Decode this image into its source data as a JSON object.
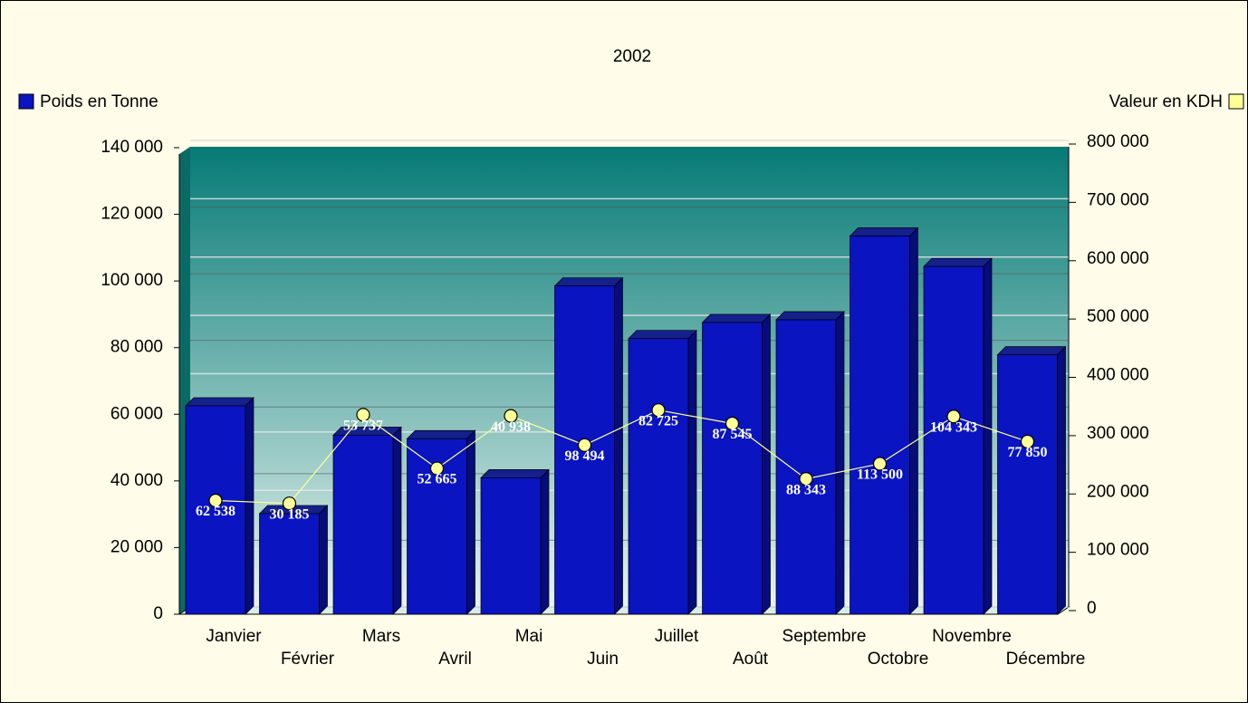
{
  "chart_data": {
    "type": "bar",
    "title": "2002",
    "categories": [
      "Janvier",
      "Février",
      "Mars",
      "Avril",
      "Mai",
      "Juin",
      "Juillet",
      "Août",
      "Septembre",
      "Octobre",
      "Novembre",
      "Décembre"
    ],
    "series": [
      {
        "name": "Poids en Tonne",
        "type": "bar",
        "color": "#0a14c0",
        "values": [
          62538,
          30185,
          53737,
          52665,
          40938,
          98494,
          82725,
          87545,
          88343,
          113500,
          104343,
          77850
        ],
        "value_labels": [
          "62 538",
          "30 185",
          "53 737",
          "52 665",
          "40 938",
          "98 494",
          "82 725",
          "87 545",
          "88 343",
          "113 500",
          "104 343",
          "77 850"
        ]
      },
      {
        "name": "Valeur en KDH",
        "type": "line",
        "axis": "y2",
        "color": "#ffff99",
        "values": [
          195000,
          190000,
          342000,
          250000,
          340000,
          290000,
          350000,
          327000,
          232000,
          258000,
          339000,
          296000
        ]
      }
    ],
    "ylim": [
      0,
      140000
    ],
    "yticks": [
      0,
      {
        "value": 20000,
        "label": "20 000"
      },
      {
        "value": 40000,
        "label": "40 000"
      },
      {
        "value": 60000,
        "label": "60 000"
      },
      {
        "value": 80000,
        "label": "80 000"
      },
      {
        "value": 100000,
        "label": "100 000"
      },
      {
        "value": 120000,
        "label": "120 000"
      },
      {
        "value": 140000,
        "label": "140 000"
      }
    ],
    "y2lim": [
      0,
      800000
    ],
    "y2ticks": [
      0,
      {
        "value": 100000,
        "label": "100 000"
      },
      {
        "value": 200000,
        "label": "200 000"
      },
      {
        "value": 300000,
        "label": "300 000"
      },
      {
        "value": 400000,
        "label": "400 000"
      },
      {
        "value": 500000,
        "label": "500 000"
      },
      {
        "value": 600000,
        "label": "600 000"
      },
      {
        "value": 700000,
        "label": "700 000"
      },
      {
        "value": 800000,
        "label": "800 000"
      }
    ],
    "grid": true
  }
}
